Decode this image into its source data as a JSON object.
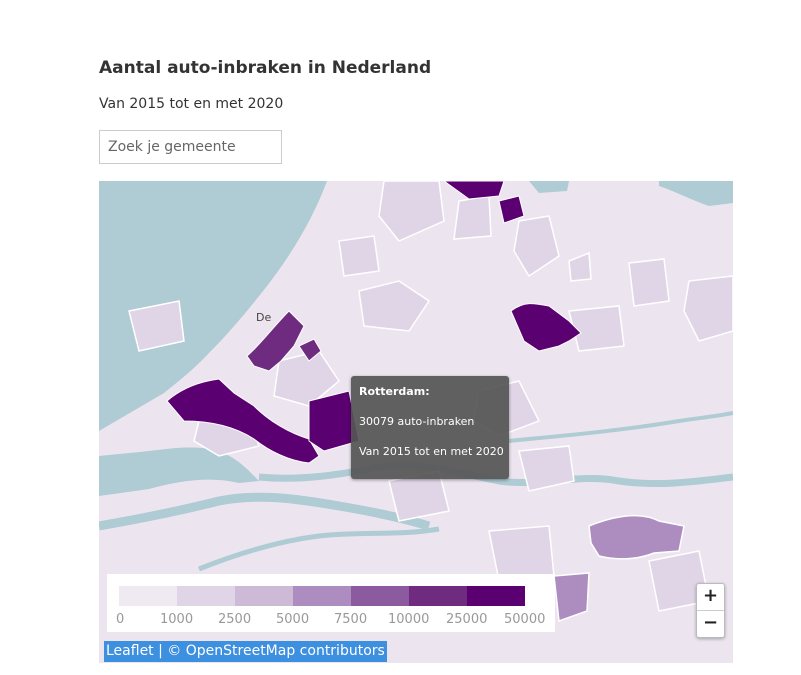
{
  "header": {
    "title": "Aantal auto-inbraken in Nederland",
    "subtitle": "Van 2015 tot en met 2020"
  },
  "search": {
    "placeholder": "Zoek je gemeente",
    "value": ""
  },
  "map": {
    "place_label": "De",
    "colors": {
      "sea": "#afcbd3",
      "land": "#ece5ef",
      "borders": "#ffffff"
    }
  },
  "tooltip": {
    "name": "Rotterdam:",
    "count_text": "30079 auto-inbraken",
    "period": "Van 2015 tot en met 2020"
  },
  "legend": {
    "colors": [
      "#efe9f1",
      "#e0d5e6",
      "#cdbad7",
      "#ad8cbf",
      "#8b5a9f",
      "#6f2b80",
      "#5a0070"
    ],
    "labels": [
      "0",
      "1000",
      "2500",
      "5000",
      "7500",
      "10000",
      "25000",
      "50000"
    ]
  },
  "zoom": {
    "zoom_in": "+",
    "zoom_out": "−"
  },
  "attribution": {
    "leaflet": "Leaflet",
    "separator": " | © ",
    "osm": "OpenStreetMap contributors"
  }
}
